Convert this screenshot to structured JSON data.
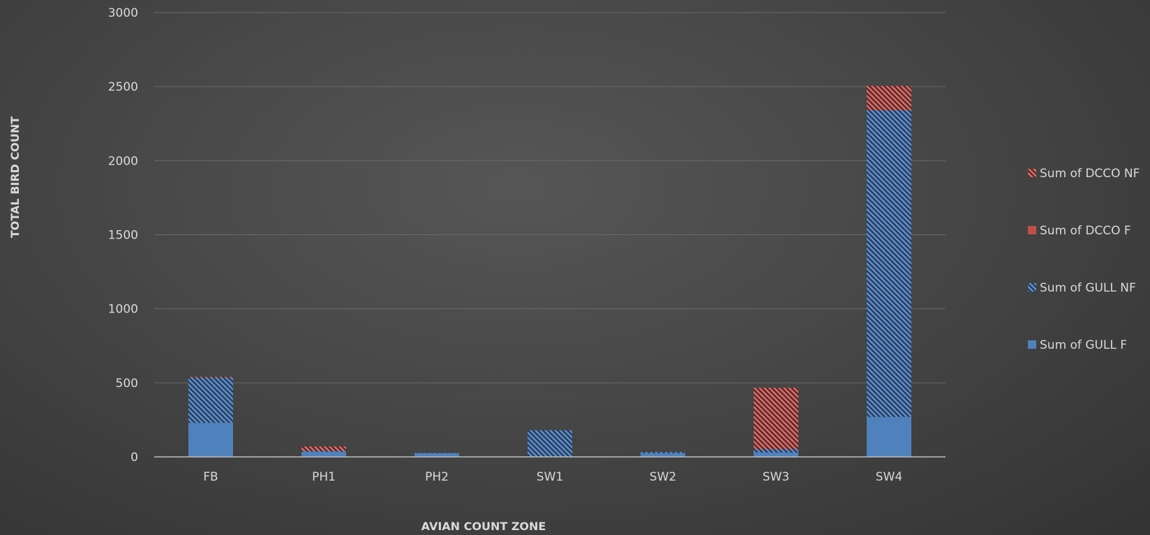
{
  "chart_data": {
    "type": "bar",
    "stacked": true,
    "title": "",
    "xlabel": "AVIAN COUNT ZONE",
    "ylabel": "TOTAL BIRD COUNT",
    "ylim": [
      0,
      3000
    ],
    "yticks": [
      0,
      500,
      1000,
      1500,
      2000,
      2500,
      3000
    ],
    "grid": true,
    "legend_position": "right",
    "categories": [
      "FB",
      "PH1",
      "PH2",
      "SW1",
      "SW2",
      "SW3",
      "SW4"
    ],
    "series": [
      {
        "name": "Sum of GULL F",
        "values": [
          230,
          35,
          25,
          0,
          25,
          30,
          270
        ],
        "color": "#4f81bd",
        "pattern": "solid"
      },
      {
        "name": "Sum of GULL NF",
        "values": [
          305,
          5,
          2,
          180,
          8,
          22,
          2070
        ],
        "color": "#4f81bd",
        "pattern": "hatched"
      },
      {
        "name": "Sum of DCCO F",
        "values": [
          0,
          0,
          0,
          0,
          0,
          0,
          0
        ],
        "color": "#c0504d",
        "pattern": "solid"
      },
      {
        "name": "Sum of DCCO NF",
        "values": [
          5,
          30,
          0,
          0,
          0,
          415,
          165
        ],
        "color": "#c0504d",
        "pattern": "hatched"
      }
    ],
    "legend_order": [
      "Sum of DCCO NF",
      "Sum of DCCO F",
      "Sum of GULL NF",
      "Sum of GULL F"
    ]
  }
}
